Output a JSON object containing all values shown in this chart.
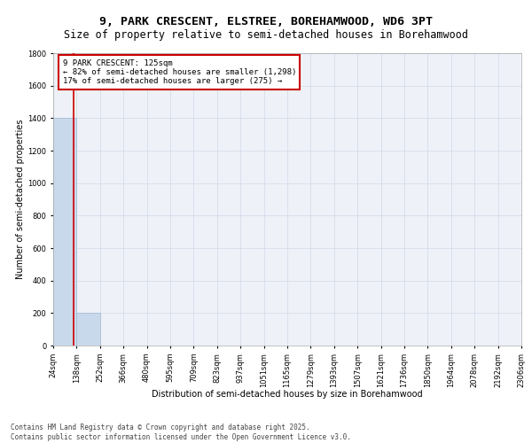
{
  "title_line1": "9, PARK CRESCENT, ELSTREE, BOREHAMWOOD, WD6 3PT",
  "title_line2": "Size of property relative to semi-detached houses in Borehamwood",
  "xlabel": "Distribution of semi-detached houses by size in Borehamwood",
  "ylabel": "Number of semi-detached properties",
  "bin_labels": [
    "24sqm",
    "138sqm",
    "252sqm",
    "366sqm",
    "480sqm",
    "595sqm",
    "709sqm",
    "823sqm",
    "937sqm",
    "1051sqm",
    "1165sqm",
    "1279sqm",
    "1393sqm",
    "1507sqm",
    "1621sqm",
    "1736sqm",
    "1850sqm",
    "1964sqm",
    "2078sqm",
    "2192sqm",
    "2306sqm"
  ],
  "bar_values": [
    1400,
    200,
    0,
    0,
    0,
    0,
    0,
    0,
    0,
    0,
    0,
    0,
    0,
    0,
    0,
    0,
    0,
    0,
    0,
    0
  ],
  "bar_color": "#c9d9ec",
  "bar_edge_color": "#a0b8d0",
  "grid_color": "#d0d8e8",
  "background_color": "#eef2f8",
  "property_size": 125,
  "property_line_color": "#cc0000",
  "ylim": [
    0,
    1800
  ],
  "yticks": [
    0,
    200,
    400,
    600,
    800,
    1000,
    1200,
    1400,
    1600,
    1800
  ],
  "annotation_title": "9 PARK CRESCENT: 125sqm",
  "annotation_line1": "← 82% of semi-detached houses are smaller (1,298)",
  "annotation_line2": "17% of semi-detached houses are larger (275) →",
  "annotation_box_color": "#cc0000",
  "footer_line1": "Contains HM Land Registry data © Crown copyright and database right 2025.",
  "footer_line2": "Contains public sector information licensed under the Open Government Licence v3.0.",
  "title_fontsize": 9.5,
  "subtitle_fontsize": 8.5,
  "axis_label_fontsize": 7,
  "tick_fontsize": 6,
  "annotation_fontsize": 6.5,
  "footer_fontsize": 5.5
}
